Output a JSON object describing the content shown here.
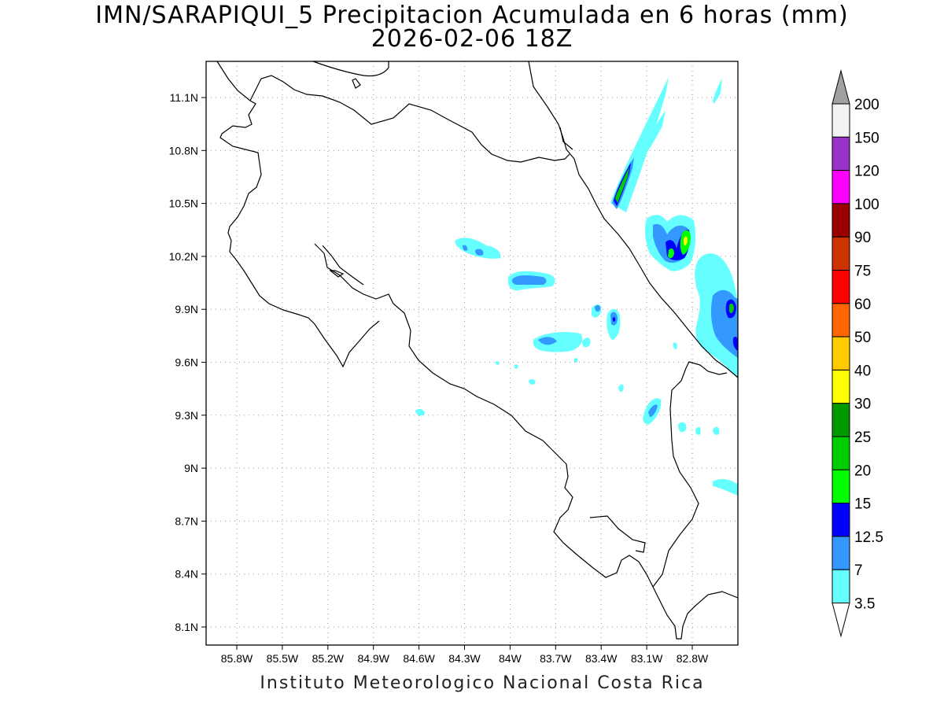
{
  "title_line1": "IMN/SARAPIQUI_5 Precipitacion Acumulada en 6 horas (mm)",
  "title_line2": "2026-02-06 18Z",
  "credit": "Instituto Meteorologico Nacional Costa Rica",
  "map": {
    "lon_range": [
      -86.0,
      -83.0
    ],
    "lat_range": [
      8.0,
      11.3
    ],
    "x_ticks": [
      "85.8W",
      "85.5W",
      "85.2W",
      "84.9W",
      "84.6W",
      "84.3W",
      "84W",
      "83.7W",
      "83.4W",
      "83.1W",
      "82.8W"
    ],
    "y_ticks": [
      "11.1N",
      "10.8N",
      "10.5N",
      "10.2N",
      "9.9N",
      "9.6N",
      "9.3N",
      "9N",
      "8.7N",
      "8.4N",
      "8.1N"
    ],
    "grid": "dotted"
  },
  "colorbar": {
    "labels": [
      "200",
      "150",
      "120",
      "100",
      "90",
      "75",
      "60",
      "50",
      "40",
      "30",
      "25",
      "20",
      "15",
      "12.5",
      "7",
      "3.5"
    ],
    "colors": [
      "#f2f2f2",
      "#9933cc",
      "#ff00ff",
      "#990000",
      "#cc3300",
      "#ff0000",
      "#ff6600",
      "#ffcc00",
      "#ffff00",
      "#009900",
      "#00cc00",
      "#00ff00",
      "#0000ff",
      "#3399ff",
      "#66ffff"
    ],
    "over_color": "#a0a0a0",
    "under_color": "#ffffff"
  }
}
